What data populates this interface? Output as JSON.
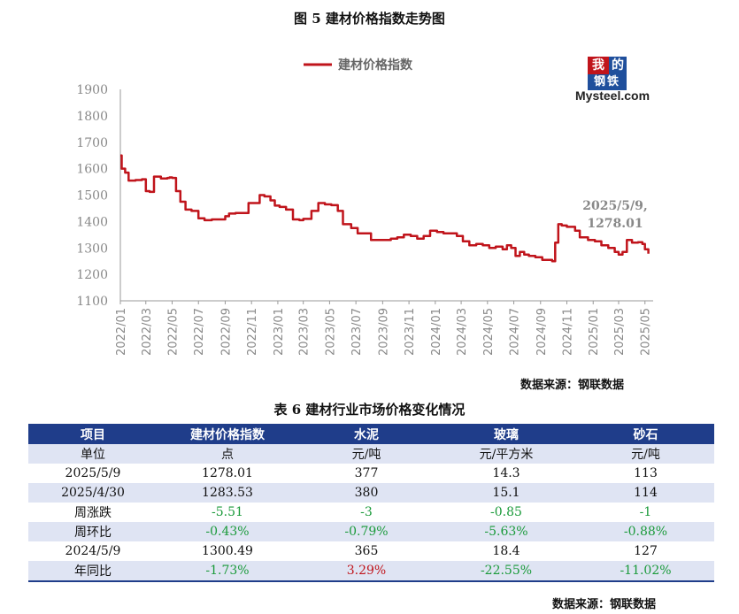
{
  "figure_title": "图 5  建材价格指数走势图",
  "logo": {
    "char1": "我",
    "char2": "的",
    "char3": "钢铁",
    "url": "Mysteel.com"
  },
  "chart_source": "数据来源：钢联数据",
  "table_title": "表 6 建材行业市场价格变化情况",
  "table_source": "数据来源：钢联数据",
  "colors": {
    "line": "#c0141b",
    "header_bg": "#1f3d8a",
    "row_shade": "#dfe4f3",
    "up": "#c0141b",
    "down": "#1a9a3a"
  },
  "chart_data": {
    "type": "line",
    "legend": "建材价格指数",
    "legend_position": "top-center",
    "ylim": [
      1100,
      1900
    ],
    "yticks": [
      1100,
      1200,
      1300,
      1400,
      1500,
      1600,
      1700,
      1800,
      1900
    ],
    "xticks": [
      "2022/01",
      "2022/03",
      "2022/05",
      "2022/07",
      "2022/09",
      "2022/11",
      "2023/01",
      "2023/03",
      "2023/05",
      "2023/07",
      "2023/09",
      "2023/11",
      "2024/01",
      "2024/03",
      "2024/05",
      "2024/07",
      "2024/09",
      "2024/11",
      "2025/01",
      "2025/03",
      "2025/05"
    ],
    "grid": false,
    "annotation": {
      "lines": [
        "2025/5/9,",
        "1278.01"
      ],
      "date": "2025-05-09",
      "value": 1278.01
    },
    "series": [
      {
        "name": "建材价格指数",
        "x": [
          "2022-01-01",
          "2022-01-04",
          "2022-01-12",
          "2022-01-20",
          "2022-02-05",
          "2022-02-20",
          "2022-03-01",
          "2022-03-10",
          "2022-03-20",
          "2022-04-05",
          "2022-04-20",
          "2022-04-25",
          "2022-05-01",
          "2022-05-10",
          "2022-05-20",
          "2022-06-01",
          "2022-06-15",
          "2022-07-01",
          "2022-07-15",
          "2022-08-01",
          "2022-08-15",
          "2022-09-01",
          "2022-09-10",
          "2022-09-25",
          "2022-10-10",
          "2022-10-25",
          "2022-11-05",
          "2022-11-20",
          "2022-12-01",
          "2022-12-15",
          "2022-12-25",
          "2023-01-05",
          "2023-01-20",
          "2023-02-05",
          "2023-02-20",
          "2023-03-01",
          "2023-03-20",
          "2023-04-05",
          "2023-04-20",
          "2023-05-05",
          "2023-05-20",
          "2023-06-01",
          "2023-06-20",
          "2023-07-05",
          "2023-07-20",
          "2023-08-05",
          "2023-08-20",
          "2023-09-05",
          "2023-09-20",
          "2023-10-05",
          "2023-10-20",
          "2023-11-05",
          "2023-11-20",
          "2023-12-05",
          "2023-12-20",
          "2024-01-05",
          "2024-01-20",
          "2024-02-05",
          "2024-02-20",
          "2024-03-05",
          "2024-03-20",
          "2024-04-05",
          "2024-04-20",
          "2024-05-05",
          "2024-05-20",
          "2024-06-05",
          "2024-06-15",
          "2024-06-25",
          "2024-07-05",
          "2024-07-15",
          "2024-07-25",
          "2024-08-05",
          "2024-08-20",
          "2024-09-05",
          "2024-09-20",
          "2024-09-28",
          "2024-10-05",
          "2024-10-12",
          "2024-10-20",
          "2024-11-01",
          "2024-11-20",
          "2024-12-01",
          "2024-12-20",
          "2025-01-05",
          "2025-01-20",
          "2025-02-05",
          "2025-02-20",
          "2025-03-01",
          "2025-03-10",
          "2025-03-20",
          "2025-04-01",
          "2025-04-15",
          "2025-04-25",
          "2025-05-01",
          "2025-05-09"
        ],
        "y": [
          1650,
          1600,
          1585,
          1555,
          1557,
          1560,
          1515,
          1512,
          1570,
          1563,
          1565,
          1567,
          1565,
          1515,
          1475,
          1445,
          1440,
          1412,
          1405,
          1408,
          1408,
          1420,
          1430,
          1432,
          1432,
          1470,
          1470,
          1500,
          1495,
          1480,
          1460,
          1455,
          1445,
          1408,
          1405,
          1410,
          1440,
          1470,
          1465,
          1462,
          1440,
          1390,
          1375,
          1355,
          1355,
          1330,
          1330,
          1330,
          1335,
          1340,
          1350,
          1345,
          1335,
          1345,
          1365,
          1360,
          1355,
          1355,
          1345,
          1325,
          1310,
          1315,
          1310,
          1300,
          1305,
          1295,
          1310,
          1300,
          1270,
          1285,
          1275,
          1270,
          1265,
          1255,
          1255,
          1250,
          1320,
          1390,
          1385,
          1380,
          1365,
          1340,
          1330,
          1325,
          1310,
          1300,
          1285,
          1275,
          1285,
          1330,
          1320,
          1322,
          1315,
          1295,
          1278.01
        ]
      }
    ]
  },
  "table": {
    "headers": [
      "项目",
      "建材价格指数",
      "水泥",
      "玻璃",
      "砂石"
    ],
    "rows": [
      {
        "label": "单位",
        "values": [
          "点",
          "元/吨",
          "元/平方米",
          "元/吨"
        ],
        "signs": [
          "",
          "",
          "",
          ""
        ]
      },
      {
        "label": "2025/5/9",
        "values": [
          "1278.01",
          "377",
          "14.3",
          "113"
        ],
        "signs": [
          "",
          "",
          "",
          ""
        ]
      },
      {
        "label": "2025/4/30",
        "values": [
          "1283.53",
          "380",
          "15.1",
          "114"
        ],
        "signs": [
          "",
          "",
          "",
          ""
        ]
      },
      {
        "label": "周涨跌",
        "values": [
          "-5.51",
          "-3",
          "-0.85",
          "-1"
        ],
        "signs": [
          "neg",
          "neg",
          "neg",
          "neg"
        ]
      },
      {
        "label": "周环比",
        "values": [
          "-0.43%",
          "-0.79%",
          "-5.63%",
          "-0.88%"
        ],
        "signs": [
          "neg",
          "neg",
          "neg",
          "neg"
        ]
      },
      {
        "label": "2024/5/9",
        "values": [
          "1300.49",
          "365",
          "18.4",
          "127"
        ],
        "signs": [
          "",
          "",
          "",
          ""
        ]
      },
      {
        "label": "年同比",
        "values": [
          "-1.73%",
          "3.29%",
          "-22.55%",
          "-11.02%"
        ],
        "signs": [
          "neg",
          "pos",
          "neg",
          "neg"
        ]
      }
    ]
  }
}
